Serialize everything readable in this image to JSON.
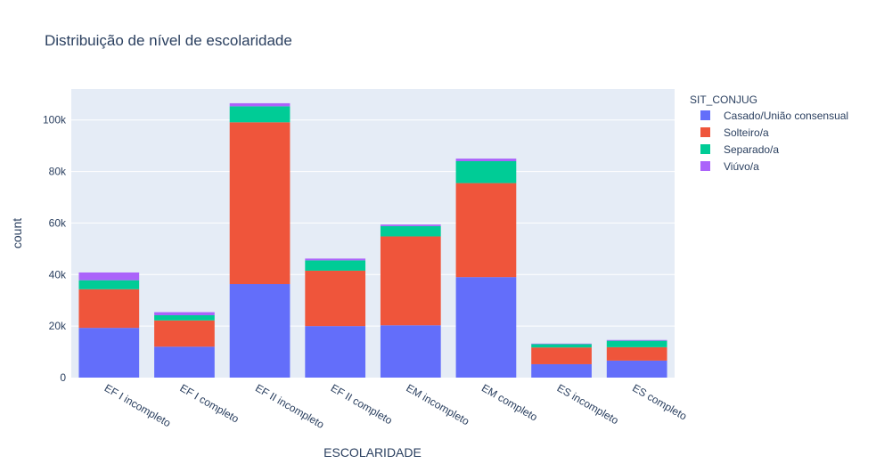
{
  "chart_data": {
    "type": "bar",
    "barmode": "stack",
    "title": "Distribuição de nível de escolaridade",
    "xlabel": "ESCOLARIDADE",
    "ylabel": "count",
    "ylim": [
      0,
      112000
    ],
    "yticks": [
      0,
      20000,
      40000,
      60000,
      80000,
      100000
    ],
    "ytick_labels": [
      "0",
      "20k",
      "40k",
      "60k",
      "80k",
      "100k"
    ],
    "grid": true,
    "legend_title": "SIT_CONJUG",
    "legend_position": "top-right",
    "categories": [
      "EF I incompleto",
      "EF I completo",
      "EF II incompleto",
      "EF II completo",
      "EM incompleto",
      "EM completo",
      "ES incompleto",
      "ES completo"
    ],
    "series": [
      {
        "name": "Casado/União consensual",
        "color": "#636efa",
        "values": [
          19300,
          12000,
          36300,
          20000,
          20300,
          39000,
          5200,
          6600
        ]
      },
      {
        "name": "Solteiro/a",
        "color": "#ef553b",
        "values": [
          15000,
          10200,
          62800,
          21500,
          34500,
          36500,
          6500,
          5200
        ]
      },
      {
        "name": "Separado/a",
        "color": "#00cc96",
        "values": [
          3500,
          2000,
          6200,
          4000,
          4000,
          8500,
          1300,
          2500
        ]
      },
      {
        "name": "Viúvo/a",
        "color": "#ab63fa",
        "values": [
          3000,
          1200,
          1200,
          700,
          600,
          1000,
          200,
          300
        ]
      }
    ]
  }
}
